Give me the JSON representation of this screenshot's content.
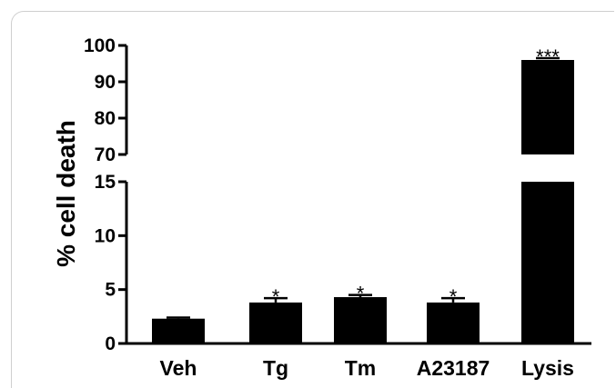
{
  "chart_data": {
    "type": "bar",
    "ylabel": "% cell death",
    "xlabel": "",
    "categories": [
      "Veh",
      "Tg",
      "Tm",
      "A23187",
      "Lysis"
    ],
    "values": [
      2.3,
      3.8,
      4.3,
      3.8,
      96
    ],
    "errors": [
      0.1,
      0.4,
      0.2,
      0.4,
      0.5
    ],
    "significance": [
      "",
      "*",
      "*",
      "*",
      "***"
    ],
    "broken_axis": {
      "lower_range": [
        0,
        15
      ],
      "lower_ticks": [
        0,
        5,
        10,
        15
      ],
      "upper_range": [
        70,
        100
      ],
      "upper_ticks": [
        70,
        80,
        90,
        100
      ]
    },
    "bar_color": "#000000",
    "grid": false
  }
}
